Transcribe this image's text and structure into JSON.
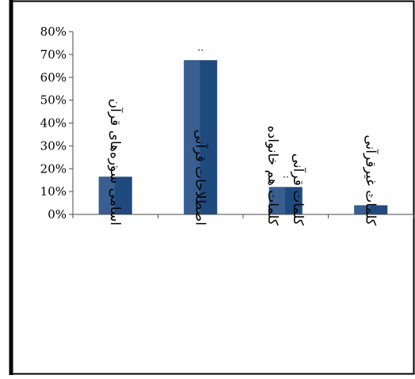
{
  "chart_data": {
    "type": "bar",
    "categories": [
      "اسامی سوره‌های قرآن",
      "اصطلاحات قرآنی",
      "کلمات هم خانواده کلمات قرآنی",
      "کلمات غیرقرآنی"
    ],
    "category_label_lines": [
      [
        "اسامی سوره‌های قرآن"
      ],
      [
        "اصطلاحات قرآنی"
      ],
      [
        "کلمات هم خانواده",
        "کلمات قرآنی"
      ],
      [
        "کلمات غیرقرآنی"
      ]
    ],
    "values": [
      16.5,
      67.5,
      12,
      4
    ],
    "data_labels": [
      "..",
      "..",
      "..",
      ".."
    ],
    "y_ticks": [
      "0%",
      "10%",
      "20%",
      "30%",
      "40%",
      "50%",
      "60%",
      "70%",
      "80%"
    ],
    "ylim": [
      0,
      80
    ],
    "grid": false,
    "legend": "none",
    "title": "",
    "xlabel": "",
    "ylabel": "",
    "colors": {
      "bar": "#1f4a7e",
      "bar_highlight": "#3e6394",
      "axis": "#4a4a4a",
      "frame": "#000000",
      "text": "#000000"
    }
  }
}
